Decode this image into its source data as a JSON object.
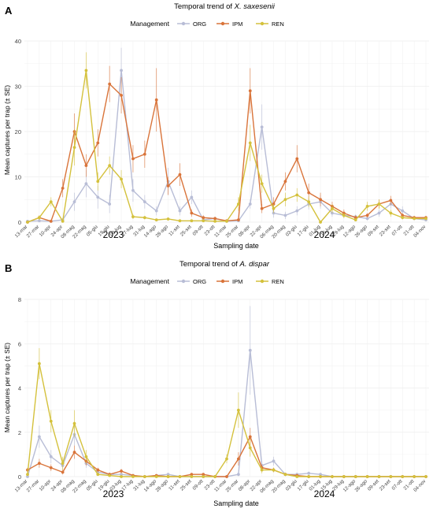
{
  "colors": {
    "ORG": "#b8bdd6",
    "IPM": "#d9743a",
    "REN": "#d4c13c",
    "grid": "#e6e6e6",
    "axis": "#444444"
  },
  "x_ticks": [
    "13-mar",
    "27-mar",
    "10-apr",
    "24-apr",
    "08-mag",
    "22-mag",
    "05-giu",
    "19-giu",
    "03-lug",
    "17-lug",
    "31-lug",
    "14-ago",
    "28-ago",
    "11-set",
    "25-set",
    "09-ott",
    "23-ott",
    "11-mar",
    "25-mar",
    "08-apr",
    "22-apr",
    "06-mag",
    "20-mag",
    "03-giu",
    "17-giu",
    "01-lug",
    "15-lug",
    "29-lug",
    "12-ago",
    "26-ago",
    "09-set",
    "23-set",
    "07-ott",
    "21-ott",
    "04-nov"
  ],
  "years": [
    "2023",
    "2024"
  ],
  "chart_data": [
    {
      "type": "line",
      "panel_letter": "A",
      "title_prefix": "Temporal trend of ",
      "title_species": "X. saxesenii",
      "legend_title": "Management",
      "legend_position": "top",
      "xlabel": "Sampling date",
      "ylabel": "Mean captures per trap (± SE)",
      "ylim": [
        0,
        40
      ],
      "yticks": [
        "0",
        "10",
        "20",
        "30",
        "40"
      ],
      "grid": true,
      "series": [
        {
          "name": "ORG",
          "x": [
            "2023-03-13",
            "2023-03-27",
            "2023-04-10",
            "2023-04-24",
            "2023-05-08",
            "2023-05-22",
            "2023-06-05",
            "2023-06-19",
            "2023-07-03",
            "2023-07-17",
            "2023-07-31",
            "2023-08-14",
            "2023-08-28",
            "2023-09-11",
            "2023-09-25",
            "2023-10-09",
            "2023-10-23",
            "2024-03-11",
            "2024-03-25",
            "2024-04-08",
            "2024-04-22",
            "2024-05-06",
            "2024-05-20",
            "2024-06-03",
            "2024-06-17",
            "2024-07-01",
            "2024-07-15",
            "2024-07-29",
            "2024-08-12",
            "2024-08-26",
            "2024-09-09",
            "2024-09-23",
            "2024-10-07",
            "2024-10-21",
            "2024-11-04"
          ],
          "y": [
            0.2,
            0.3,
            0.2,
            0.5,
            4.5,
            8.5,
            5.5,
            4,
            33.5,
            7,
            4.5,
            2.5,
            9,
            2.5,
            5.5,
            0.5,
            0.8,
            0.2,
            0.3,
            4,
            21,
            2,
            1.5,
            2.5,
            4,
            4.5,
            2,
            1.5,
            1.2,
            0.8,
            2,
            4,
            2.5,
            0.8,
            0.5
          ],
          "se": [
            0.2,
            0.3,
            0.2,
            0.4,
            2,
            3,
            2.5,
            2,
            5,
            2.5,
            1.5,
            1,
            3,
            1,
            1.5,
            0.3,
            0.3,
            0.2,
            0.2,
            1,
            5,
            1,
            0.8,
            1,
            1.2,
            1.5,
            0.8,
            0.6,
            0.5,
            0.4,
            0.8,
            1,
            1,
            0.4,
            0.3
          ]
        },
        {
          "name": "IPM",
          "x": [
            "2023-03-13",
            "2023-03-27",
            "2023-04-10",
            "2023-04-24",
            "2023-05-08",
            "2023-05-22",
            "2023-06-05",
            "2023-06-19",
            "2023-07-03",
            "2023-07-17",
            "2023-07-31",
            "2023-08-14",
            "2023-08-28",
            "2023-09-11",
            "2023-09-25",
            "2023-10-09",
            "2023-10-23",
            "2024-03-11",
            "2024-03-25",
            "2024-04-08",
            "2024-04-22",
            "2024-05-06",
            "2024-05-20",
            "2024-06-03",
            "2024-06-17",
            "2024-07-01",
            "2024-07-15",
            "2024-07-29",
            "2024-08-12",
            "2024-08-26",
            "2024-09-09",
            "2024-09-23",
            "2024-10-07",
            "2024-10-21",
            "2024-11-04"
          ],
          "y": [
            0,
            1,
            0.2,
            7.5,
            20,
            12.5,
            17.5,
            30.5,
            28,
            14,
            15,
            27,
            8,
            10.5,
            2,
            1,
            0.8,
            0.3,
            0.5,
            29,
            3,
            4,
            9,
            14,
            6.5,
            5,
            3.5,
            2,
            1,
            1.5,
            4,
            4.8,
            1.5,
            1,
            1
          ],
          "se": [
            0.1,
            0.5,
            0.2,
            2,
            4,
            2.5,
            3,
            4,
            4,
            3,
            3,
            7,
            2,
            2.5,
            0.8,
            0.5,
            0.4,
            0.2,
            0.3,
            5,
            1,
            1.5,
            2,
            3,
            2,
            1.5,
            1,
            0.8,
            0.5,
            0.5,
            1,
            1,
            0.5,
            0.4,
            0.4
          ]
        },
        {
          "name": "REN",
          "x": [
            "2023-03-13",
            "2023-03-27",
            "2023-04-10",
            "2023-04-24",
            "2023-05-08",
            "2023-05-22",
            "2023-06-05",
            "2023-06-19",
            "2023-07-03",
            "2023-07-17",
            "2023-07-31",
            "2023-08-14",
            "2023-08-28",
            "2023-09-11",
            "2023-09-25",
            "2023-10-09",
            "2023-10-23",
            "2024-03-11",
            "2024-03-25",
            "2024-04-08",
            "2024-04-22",
            "2024-05-06",
            "2024-05-20",
            "2024-06-03",
            "2024-06-17",
            "2024-07-01",
            "2024-07-15",
            "2024-07-29",
            "2024-08-12",
            "2024-08-26",
            "2024-09-09",
            "2024-09-23",
            "2024-10-07",
            "2024-10-21",
            "2024-11-04"
          ],
          "y": [
            0,
            1,
            4.5,
            0.2,
            16.5,
            33.5,
            9,
            12.5,
            9.5,
            1.2,
            1,
            0.5,
            0.7,
            0.3,
            0.3,
            0.3,
            0.2,
            0.2,
            4,
            17.5,
            8.5,
            3,
            5,
            6,
            4.5,
            0,
            3,
            1.5,
            0.5,
            3.5,
            4,
            2,
            1,
            0.8,
            0.8
          ],
          "se": [
            0.1,
            0.5,
            1,
            0.2,
            4,
            4,
            2,
            2,
            2,
            0.5,
            0.4,
            0.3,
            0.3,
            0.2,
            0.2,
            0.2,
            0.1,
            0.1,
            1.5,
            4,
            2,
            1,
            1.5,
            1.5,
            1.2,
            0.1,
            1,
            0.6,
            0.3,
            1,
            1,
            0.8,
            0.4,
            0.3,
            0.3
          ]
        }
      ]
    },
    {
      "type": "line",
      "panel_letter": "B",
      "title_prefix": "Temporal trend of ",
      "title_species": "A. dispar",
      "legend_title": "Management",
      "legend_position": "top",
      "xlabel": "Sampling date",
      "ylabel": "Mean captures per trap (± SE)",
      "ylim": [
        0,
        8
      ],
      "yticks": [
        "0",
        "2",
        "4",
        "6",
        "8"
      ],
      "grid": true,
      "series": [
        {
          "name": "ORG",
          "x": [
            "2023-03-13",
            "2023-03-27",
            "2023-04-10",
            "2023-04-24",
            "2023-05-08",
            "2023-05-22",
            "2023-06-05",
            "2023-06-19",
            "2023-07-03",
            "2023-07-17",
            "2023-07-31",
            "2023-08-14",
            "2023-08-28",
            "2023-09-11",
            "2023-09-25",
            "2023-10-09",
            "2023-10-23",
            "2024-03-11",
            "2024-03-25",
            "2024-04-08",
            "2024-04-22",
            "2024-05-06",
            "2024-05-20",
            "2024-06-03",
            "2024-06-17",
            "2024-07-01",
            "2024-07-15",
            "2024-07-29",
            "2024-08-12",
            "2024-08-26",
            "2024-09-09",
            "2024-09-23",
            "2024-10-07",
            "2024-10-21",
            "2024-11-04"
          ],
          "y": [
            0,
            1.8,
            0.9,
            0.5,
            1.9,
            0.6,
            0.2,
            0.1,
            0.1,
            0.05,
            0,
            0.05,
            0.1,
            0,
            0,
            0,
            0,
            0,
            0.1,
            5.7,
            0.5,
            0.7,
            0.1,
            0.1,
            0.15,
            0.1,
            0,
            0,
            0,
            0,
            0,
            0,
            0,
            0,
            0
          ],
          "se": [
            0.05,
            0.5,
            0.3,
            0.2,
            0.5,
            0.2,
            0.1,
            0.08,
            0.08,
            0.05,
            0.03,
            0.05,
            0.06,
            0.03,
            0.03,
            0.03,
            0.03,
            0.03,
            0.08,
            2,
            0.2,
            0.2,
            0.08,
            0.06,
            0.08,
            0.06,
            0.02,
            0.02,
            0.02,
            0.02,
            0.02,
            0.02,
            0.02,
            0.02,
            0.02
          ]
        },
        {
          "name": "IPM",
          "x": [
            "2023-03-13",
            "2023-03-27",
            "2023-04-10",
            "2023-04-24",
            "2023-05-08",
            "2023-05-22",
            "2023-06-05",
            "2023-06-19",
            "2023-07-03",
            "2023-07-17",
            "2023-07-31",
            "2023-08-14",
            "2023-08-28",
            "2023-09-11",
            "2023-09-25",
            "2023-10-09",
            "2023-10-23",
            "2024-03-11",
            "2024-03-25",
            "2024-04-08",
            "2024-04-22",
            "2024-05-06",
            "2024-05-20",
            "2024-06-03",
            "2024-06-17",
            "2024-07-01",
            "2024-07-15",
            "2024-07-29",
            "2024-08-12",
            "2024-08-26",
            "2024-09-09",
            "2024-09-23",
            "2024-10-07",
            "2024-10-21",
            "2024-11-04"
          ],
          "y": [
            0.3,
            0.6,
            0.4,
            0.2,
            1.1,
            0.7,
            0.3,
            0.1,
            0.25,
            0.05,
            0,
            0.05,
            0,
            0,
            0.1,
            0.1,
            0,
            0,
            0.8,
            1.8,
            0.4,
            0.3,
            0.1,
            0.05,
            0,
            0,
            0,
            0,
            0,
            0,
            0,
            0,
            0,
            0,
            0
          ],
          "se": [
            0.1,
            0.2,
            0.15,
            0.1,
            0.3,
            0.2,
            0.1,
            0.08,
            0.1,
            0.05,
            0.03,
            0.05,
            0.03,
            0.03,
            0.06,
            0.06,
            0.03,
            0.03,
            0.3,
            0.4,
            0.15,
            0.1,
            0.06,
            0.05,
            0.02,
            0.02,
            0.02,
            0.02,
            0.02,
            0.02,
            0.02,
            0.02,
            0.02,
            0.02,
            0.02
          ]
        },
        {
          "name": "REN",
          "x": [
            "2023-03-13",
            "2023-03-27",
            "2023-04-10",
            "2023-04-24",
            "2023-05-08",
            "2023-05-22",
            "2023-06-05",
            "2023-06-19",
            "2023-07-03",
            "2023-07-17",
            "2023-07-31",
            "2023-08-14",
            "2023-08-28",
            "2023-09-11",
            "2023-09-25",
            "2023-10-09",
            "2023-10-23",
            "2024-03-11",
            "2024-03-25",
            "2024-04-08",
            "2024-04-22",
            "2024-05-06",
            "2024-05-20",
            "2024-06-03",
            "2024-06-17",
            "2024-07-01",
            "2024-07-15",
            "2024-07-29",
            "2024-08-12",
            "2024-08-26",
            "2024-09-09",
            "2024-09-23",
            "2024-10-07",
            "2024-10-21",
            "2024-11-04"
          ],
          "y": [
            0.1,
            5.1,
            2.5,
            0.6,
            2.4,
            0.9,
            0.1,
            0.05,
            0,
            0,
            0,
            0,
            0,
            0,
            0,
            0,
            0,
            0.8,
            3.0,
            1.3,
            0.3,
            0.3,
            0.1,
            0,
            0,
            0,
            0,
            0,
            0,
            0,
            0,
            0,
            0,
            0,
            0
          ],
          "se": [
            0.05,
            0.7,
            0.5,
            0.3,
            0.6,
            0.3,
            0.06,
            0.04,
            0.02,
            0.02,
            0.02,
            0.02,
            0.02,
            0.02,
            0.02,
            0.02,
            0.02,
            0.2,
            0.8,
            0.4,
            0.15,
            0.1,
            0.05,
            0.02,
            0.02,
            0.02,
            0.02,
            0.02,
            0.02,
            0.02,
            0.02,
            0.02,
            0.02,
            0.02,
            0.02
          ]
        }
      ]
    }
  ]
}
